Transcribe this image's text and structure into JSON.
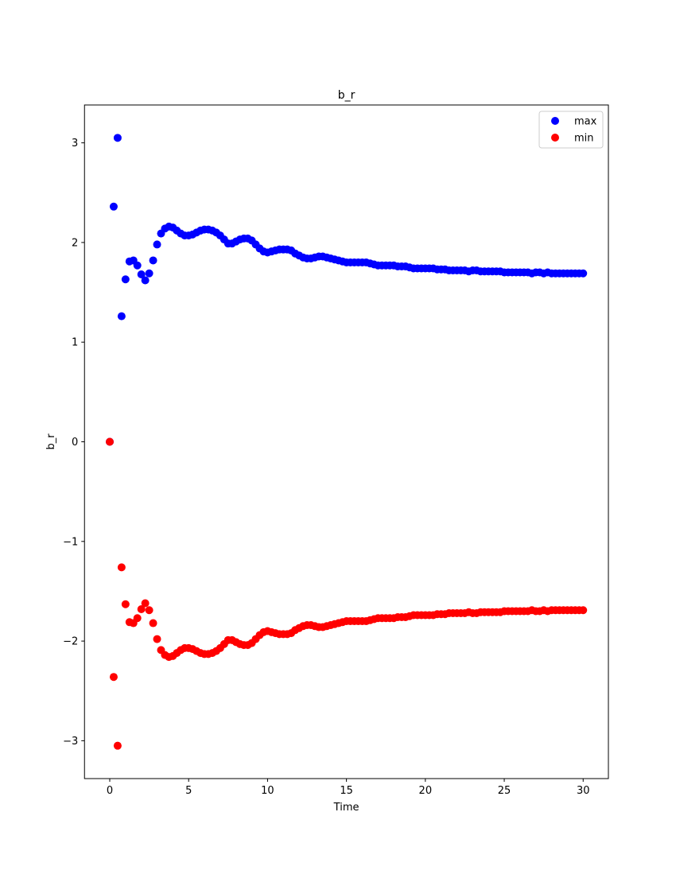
{
  "chart_data": {
    "type": "scatter",
    "title": "b_r",
    "xlabel": "Time",
    "ylabel": "b_r",
    "xlim": [
      -1.6,
      31.6
    ],
    "ylim": [
      -3.38,
      3.38
    ],
    "xticks": [
      0,
      5,
      10,
      15,
      20,
      25,
      30
    ],
    "yticks": [
      -3,
      -2,
      -1,
      0,
      1,
      2,
      3
    ],
    "xtick_labels": [
      "0",
      "5",
      "10",
      "15",
      "20",
      "25",
      "30"
    ],
    "ytick_labels": [
      "−3",
      "−2",
      "−1",
      "0",
      "1",
      "2",
      "3"
    ],
    "grid": false,
    "legend_position": "top-right",
    "series": [
      {
        "name": "max",
        "color": "#0000ff",
        "x": [
          0,
          0.25,
          0.5,
          0.75,
          1,
          1.25,
          1.5,
          1.75,
          2,
          2.25,
          2.5,
          2.75,
          3,
          3.25,
          3.5,
          3.75,
          4,
          4.25,
          4.5,
          4.75,
          5,
          5.25,
          5.5,
          5.75,
          6,
          6.25,
          6.5,
          6.75,
          7,
          7.25,
          7.5,
          7.75,
          8,
          8.25,
          8.5,
          8.75,
          9,
          9.25,
          9.5,
          9.75,
          10,
          10.25,
          10.5,
          10.75,
          11,
          11.25,
          11.5,
          11.75,
          12,
          12.25,
          12.5,
          12.75,
          13,
          13.25,
          13.5,
          13.75,
          14,
          14.25,
          14.5,
          14.75,
          15,
          15.25,
          15.5,
          15.75,
          16,
          16.25,
          16.5,
          16.75,
          17,
          17.25,
          17.5,
          17.75,
          18,
          18.25,
          18.5,
          18.75,
          19,
          19.25,
          19.5,
          19.75,
          20,
          20.25,
          20.5,
          20.75,
          21,
          21.25,
          21.5,
          21.75,
          22,
          22.25,
          22.5,
          22.75,
          23,
          23.25,
          23.5,
          23.75,
          24,
          24.25,
          24.5,
          24.75,
          25,
          25.25,
          25.5,
          25.75,
          26,
          26.25,
          26.5,
          26.75,
          27,
          27.25,
          27.5,
          27.75,
          28,
          28.25,
          28.5,
          28.75,
          29,
          29.25,
          29.5,
          29.75,
          30
        ],
        "y": [
          0,
          2.36,
          3.05,
          1.26,
          1.63,
          1.81,
          1.82,
          1.77,
          1.68,
          1.62,
          1.69,
          1.82,
          1.98,
          2.09,
          2.14,
          2.16,
          2.15,
          2.12,
          2.09,
          2.07,
          2.07,
          2.08,
          2.1,
          2.12,
          2.13,
          2.13,
          2.12,
          2.1,
          2.07,
          2.03,
          1.99,
          1.99,
          2.01,
          2.03,
          2.04,
          2.04,
          2.02,
          1.98,
          1.94,
          1.91,
          1.9,
          1.91,
          1.92,
          1.93,
          1.93,
          1.93,
          1.92,
          1.89,
          1.87,
          1.85,
          1.84,
          1.84,
          1.85,
          1.86,
          1.86,
          1.85,
          1.84,
          1.83,
          1.82,
          1.81,
          1.8,
          1.8,
          1.8,
          1.8,
          1.8,
          1.8,
          1.79,
          1.78,
          1.77,
          1.77,
          1.77,
          1.77,
          1.77,
          1.76,
          1.76,
          1.76,
          1.75,
          1.74,
          1.74,
          1.74,
          1.74,
          1.74,
          1.74,
          1.73,
          1.73,
          1.73,
          1.72,
          1.72,
          1.72,
          1.72,
          1.72,
          1.71,
          1.72,
          1.72,
          1.71,
          1.71,
          1.71,
          1.71,
          1.71,
          1.71,
          1.7,
          1.7,
          1.7,
          1.7,
          1.7,
          1.7,
          1.7,
          1.69,
          1.7,
          1.7,
          1.69,
          1.7,
          1.69,
          1.69,
          1.69,
          1.69,
          1.69,
          1.69,
          1.69,
          1.69,
          1.69
        ]
      },
      {
        "name": "min",
        "color": "#ff0000",
        "x": [
          0,
          0.25,
          0.5,
          0.75,
          1,
          1.25,
          1.5,
          1.75,
          2,
          2.25,
          2.5,
          2.75,
          3,
          3.25,
          3.5,
          3.75,
          4,
          4.25,
          4.5,
          4.75,
          5,
          5.25,
          5.5,
          5.75,
          6,
          6.25,
          6.5,
          6.75,
          7,
          7.25,
          7.5,
          7.75,
          8,
          8.25,
          8.5,
          8.75,
          9,
          9.25,
          9.5,
          9.75,
          10,
          10.25,
          10.5,
          10.75,
          11,
          11.25,
          11.5,
          11.75,
          12,
          12.25,
          12.5,
          12.75,
          13,
          13.25,
          13.5,
          13.75,
          14,
          14.25,
          14.5,
          14.75,
          15,
          15.25,
          15.5,
          15.75,
          16,
          16.25,
          16.5,
          16.75,
          17,
          17.25,
          17.5,
          17.75,
          18,
          18.25,
          18.5,
          18.75,
          19,
          19.25,
          19.5,
          19.75,
          20,
          20.25,
          20.5,
          20.75,
          21,
          21.25,
          21.5,
          21.75,
          22,
          22.25,
          22.5,
          22.75,
          23,
          23.25,
          23.5,
          23.75,
          24,
          24.25,
          24.5,
          24.75,
          25,
          25.25,
          25.5,
          25.75,
          26,
          26.25,
          26.5,
          26.75,
          27,
          27.25,
          27.5,
          27.75,
          28,
          28.25,
          28.5,
          28.75,
          29,
          29.25,
          29.5,
          29.75,
          30
        ],
        "y": [
          0,
          -2.36,
          -3.05,
          -1.26,
          -1.63,
          -1.81,
          -1.82,
          -1.77,
          -1.68,
          -1.62,
          -1.69,
          -1.82,
          -1.98,
          -2.09,
          -2.14,
          -2.16,
          -2.15,
          -2.12,
          -2.09,
          -2.07,
          -2.07,
          -2.08,
          -2.1,
          -2.12,
          -2.13,
          -2.13,
          -2.12,
          -2.1,
          -2.07,
          -2.03,
          -1.99,
          -1.99,
          -2.01,
          -2.03,
          -2.04,
          -2.04,
          -2.02,
          -1.98,
          -1.94,
          -1.91,
          -1.9,
          -1.91,
          -1.92,
          -1.93,
          -1.93,
          -1.93,
          -1.92,
          -1.89,
          -1.87,
          -1.85,
          -1.84,
          -1.84,
          -1.85,
          -1.86,
          -1.86,
          -1.85,
          -1.84,
          -1.83,
          -1.82,
          -1.81,
          -1.8,
          -1.8,
          -1.8,
          -1.8,
          -1.8,
          -1.8,
          -1.79,
          -1.78,
          -1.77,
          -1.77,
          -1.77,
          -1.77,
          -1.77,
          -1.76,
          -1.76,
          -1.76,
          -1.75,
          -1.74,
          -1.74,
          -1.74,
          -1.74,
          -1.74,
          -1.74,
          -1.73,
          -1.73,
          -1.73,
          -1.72,
          -1.72,
          -1.72,
          -1.72,
          -1.72,
          -1.71,
          -1.72,
          -1.72,
          -1.71,
          -1.71,
          -1.71,
          -1.71,
          -1.71,
          -1.71,
          -1.7,
          -1.7,
          -1.7,
          -1.7,
          -1.7,
          -1.7,
          -1.7,
          -1.69,
          -1.7,
          -1.7,
          -1.69,
          -1.7,
          -1.69,
          -1.69,
          -1.69,
          -1.69,
          -1.69,
          -1.69,
          -1.69,
          -1.69,
          -1.69
        ]
      }
    ]
  }
}
